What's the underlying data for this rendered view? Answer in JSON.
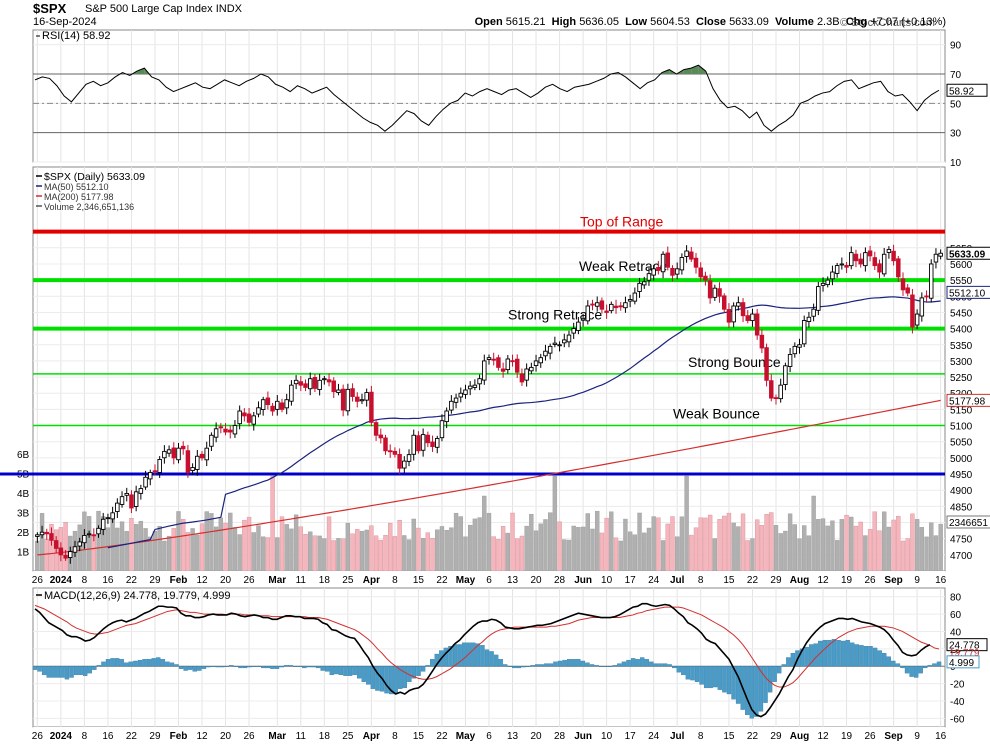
{
  "header": {
    "symbol": "$SPX",
    "name": "S&P 500 Large Cap Index",
    "exchange": "INDX",
    "date": "16-Sep-2024",
    "watermark": "© StockCharts.com",
    "open_label": "Open",
    "open": "5615.21",
    "high_label": "High",
    "high": "5636.05",
    "low_label": "Low",
    "low": "5604.53",
    "close_label": "Close",
    "close": "5633.09",
    "volume_label": "Volume",
    "volume": "2.3B",
    "chg_label": "Chg",
    "chg": "+7.07 (+0.13%)"
  },
  "colors": {
    "up": "#000000",
    "down": "#c8102e",
    "ma50": "#1a237e",
    "ma200": "#d32f2f",
    "green_line": "#00e000",
    "red_line": "#e00000",
    "blue_line": "#0000c8",
    "vol_up": "#b0b0b0",
    "vol_down": "#f4b6bc",
    "rsi_fill": "#5b8a5a",
    "macd_hist": "#4a9cc8",
    "macd_line": "#000000",
    "macd_signal": "#d32f2f"
  },
  "chart_data": [
    {
      "type": "line",
      "panel": "rsi",
      "legend": "RSI(14) 58.92",
      "ylim": [
        10,
        100
      ],
      "ticks": [
        10,
        30,
        50,
        70,
        90
      ],
      "last_value": "58.92",
      "overbought": 70,
      "oversold": 30,
      "midline": 50,
      "values": [
        66,
        68,
        67,
        62,
        55,
        51,
        57,
        63,
        65,
        62,
        64,
        68,
        71,
        69,
        72,
        74,
        68,
        66,
        61,
        58,
        60,
        62,
        64,
        61,
        60,
        63,
        66,
        64,
        62,
        65,
        67,
        70,
        68,
        63,
        61,
        58,
        62,
        60,
        57,
        59,
        61,
        56,
        52,
        48,
        44,
        40,
        37,
        35,
        31,
        35,
        40,
        45,
        43,
        38,
        35,
        41,
        46,
        50,
        52,
        57,
        55,
        58,
        60,
        58,
        56,
        59,
        60,
        57,
        54,
        57,
        61,
        63,
        60,
        58,
        61,
        62,
        63,
        65,
        67,
        70,
        71,
        68,
        64,
        60,
        64,
        66,
        71,
        73,
        70,
        73,
        74,
        76,
        72,
        60,
        52,
        47,
        48,
        45,
        40,
        44,
        35,
        31,
        35,
        38,
        42,
        50,
        52,
        55,
        57,
        58,
        62,
        65,
        66,
        60,
        62,
        64,
        65,
        58,
        55,
        56,
        51,
        45,
        52,
        56,
        58.92
      ]
    },
    {
      "type": "candlestick",
      "panel": "price",
      "legend": [
        "$SPX (Daily) 5633.09",
        "MA(50) 5512.10",
        "MA(200) 5177.98",
        "Volume 2,346,651,136"
      ],
      "ylim": [
        4650,
        5900
      ],
      "ticks": [
        4700,
        4750,
        4800,
        4850,
        4900,
        4950,
        5000,
        5050,
        5100,
        5150,
        5200,
        5250,
        5300,
        5350,
        5400,
        5450,
        5500,
        5550,
        5600,
        5650
      ],
      "last_close_label": "5633.09",
      "ma50_label": "5512.10",
      "ma200_label": "5177.98",
      "volume_label": "2346651",
      "volume_ticks": [
        "1B",
        "2B",
        "3B",
        "4B",
        "5B",
        "6B"
      ],
      "horizontal_lines": [
        {
          "value": 5700,
          "label": "Top of Range",
          "color": "#e00000"
        },
        {
          "value": 5550,
          "label": "Weak Retrace",
          "color": "#00e000"
        },
        {
          "value": 5400,
          "label": "Strong Retrace",
          "color": "#00e000"
        },
        {
          "value": 5260,
          "label": "Strong Bounce",
          "color": "#00e000"
        },
        {
          "value": 5100,
          "label": "Weak Bounce",
          "color": "#00e000"
        },
        {
          "value": 4950,
          "label": "",
          "color": "#0000c8"
        }
      ],
      "close": [
        4762,
        4770,
        4765,
        4745,
        4720,
        4700,
        4690,
        4710,
        4725,
        4740,
        4760,
        4765,
        4762,
        4782,
        4810,
        4815,
        4830,
        4860,
        4880,
        4890,
        4845,
        4895,
        4905,
        4940,
        4955,
        4960,
        4995,
        5020,
        5025,
        5000,
        5030,
        5028,
        4955,
        4970,
        5005,
        5000,
        5030,
        5070,
        5090,
        5095,
        5080,
        5080,
        5100,
        5145,
        5130,
        5110,
        5130,
        5155,
        5180,
        5165,
        5145,
        5175,
        5150,
        5180,
        5225,
        5240,
        5225,
        5218,
        5245,
        5215,
        5240,
        5245,
        5235,
        5205,
        5210,
        5148,
        5212,
        5190,
        5175,
        5180,
        5202,
        5110,
        5070,
        5062,
        5022,
        5020,
        5011,
        4968,
        4990,
        5010,
        5070,
        5022,
        5072,
        5047,
        5035,
        5060,
        5115,
        5145,
        5175,
        5185,
        5200,
        5210,
        5222,
        5225,
        5245,
        5300,
        5310,
        5305,
        5280,
        5268,
        5306,
        5300,
        5265,
        5235,
        5275,
        5280,
        5300,
        5310,
        5330,
        5345,
        5355,
        5350,
        5365,
        5380,
        5400,
        5420,
        5430,
        5470,
        5475,
        5480,
        5460,
        5450,
        5475,
        5465,
        5470,
        5480,
        5490,
        5510,
        5540,
        5545,
        5570,
        5585,
        5580,
        5630,
        5590,
        5565,
        5585,
        5620,
        5640,
        5615,
        5590,
        5560,
        5550,
        5495,
        5525,
        5500,
        5460,
        5420,
        5470,
        5480,
        5440,
        5425,
        5445,
        5380,
        5340,
        5240,
        5185,
        5185,
        5225,
        5285,
        5320,
        5345,
        5350,
        5425,
        5435,
        5460,
        5530,
        5540,
        5550,
        5575,
        5595,
        5600,
        5590,
        5635,
        5610,
        5600,
        5635,
        5625,
        5595,
        5575,
        5630,
        5645,
        5610,
        5560,
        5520,
        5510,
        5405,
        5445,
        5495,
        5500,
        5600,
        5630,
        5633.09
      ]
    },
    {
      "type": "bar",
      "panel": "macd",
      "legend": "MACD(12,26,9) 24.778, 19.779, 4.999",
      "ylim": [
        -70,
        90
      ],
      "ticks": [
        -60,
        -40,
        -20,
        0,
        20,
        40,
        60,
        80
      ],
      "macd_label": "24.778",
      "signal_label": "19.779",
      "hist_label": "4.999",
      "macd": [
        66,
        62,
        56,
        50,
        47,
        44,
        41,
        36,
        34,
        34,
        32,
        29,
        30,
        33,
        38,
        43,
        47,
        50,
        52,
        53,
        51,
        53,
        55,
        58,
        61,
        63,
        66,
        69,
        69,
        68,
        68,
        67,
        61,
        58,
        58,
        56,
        56,
        57,
        59,
        60,
        59,
        59,
        59,
        61,
        60,
        58,
        57,
        58,
        59,
        58,
        56,
        56,
        54,
        54,
        56,
        58,
        58,
        57,
        57,
        55,
        55,
        55,
        54,
        50,
        48,
        42,
        41,
        38,
        35,
        33,
        32,
        25,
        17,
        10,
        0,
        -8,
        -14,
        -22,
        -28,
        -32,
        -30,
        -32,
        -28,
        -26,
        -25,
        -21,
        -14,
        -6,
        2,
        9,
        15,
        20,
        26,
        30,
        36,
        41,
        46,
        50,
        52,
        52,
        54,
        53,
        50,
        45,
        44,
        43,
        43,
        44,
        45,
        46,
        47,
        47,
        48,
        49,
        51,
        53,
        55,
        57,
        59,
        61,
        60,
        59,
        58,
        57,
        56,
        56,
        56,
        57,
        59,
        62,
        65,
        68,
        69,
        72,
        72,
        70,
        69,
        70,
        71,
        70,
        66,
        61,
        57,
        50,
        47,
        43,
        38,
        31,
        28,
        26,
        20,
        14,
        8,
        -2,
        -12,
        -25,
        -38,
        -50,
        -56,
        -58,
        -55,
        -48,
        -40,
        -32,
        -22,
        -12,
        -4,
        8,
        18,
        27,
        34,
        40,
        45,
        49,
        51,
        53,
        55,
        55,
        54,
        55,
        53,
        51,
        50,
        49,
        47,
        45,
        42,
        37,
        30,
        24,
        16,
        13,
        12,
        13,
        18,
        22,
        24.778
      ],
      "signal": [
        70,
        68,
        66,
        63,
        60,
        57,
        54,
        51,
        47,
        44,
        42,
        40,
        38,
        37,
        37,
        38,
        39,
        41,
        43,
        45,
        47,
        48,
        49,
        51,
        53,
        55,
        57,
        59,
        61,
        63,
        64,
        65,
        64,
        63,
        62,
        62,
        61,
        60,
        60,
        60,
        60,
        60,
        59,
        60,
        60,
        60,
        59,
        59,
        59,
        58,
        58,
        58,
        57,
        57,
        57,
        57,
        57,
        57,
        57,
        57,
        56,
        56,
        56,
        55,
        54,
        52,
        50,
        48,
        46,
        44,
        42,
        39,
        35,
        31,
        26,
        20,
        15,
        9,
        4,
        0,
        -4,
        -7,
        -10,
        -12,
        -14,
        -15,
        -15,
        -14,
        -12,
        -9,
        -6,
        -3,
        1,
        5,
        9,
        14,
        19,
        24,
        28,
        33,
        37,
        40,
        42,
        43,
        44,
        45,
        45,
        45,
        45,
        45,
        45,
        45,
        45,
        46,
        46,
        47,
        48,
        49,
        51,
        53,
        54,
        55,
        56,
        56,
        56,
        56,
        56,
        56,
        56,
        57,
        58,
        59,
        61,
        62,
        64,
        65,
        66,
        67,
        68,
        68,
        68,
        68,
        67,
        65,
        63,
        61,
        59,
        56,
        53,
        50,
        47,
        44,
        40,
        36,
        31,
        25,
        18,
        10,
        2,
        -6,
        -13,
        -18,
        -22,
        -24,
        -24,
        -22,
        -19,
        -14,
        -8,
        -2,
        4,
        10,
        15,
        20,
        25,
        29,
        33,
        36,
        39,
        41,
        43,
        44,
        45,
        46,
        46,
        46,
        46,
        45,
        44,
        42,
        40,
        37,
        34,
        31,
        28,
        26,
        24,
        21,
        19.779
      ],
      "histogram": [
        -4,
        -6,
        -10,
        -13,
        -13,
        -13,
        -13,
        -15,
        -13,
        -10,
        -10,
        -11,
        -8,
        -4,
        1,
        5,
        8,
        9,
        9,
        8,
        4,
        5,
        6,
        7,
        8,
        8,
        9,
        10,
        8,
        5,
        4,
        2,
        -3,
        -5,
        -4,
        -6,
        -5,
        -3,
        -1,
        0,
        -1,
        -1,
        0,
        1,
        0,
        -2,
        -2,
        -1,
        0,
        0,
        -2,
        -2,
        -3,
        -3,
        -1,
        1,
        1,
        0,
        0,
        -2,
        -1,
        -1,
        -2,
        -5,
        -6,
        -10,
        -9,
        -10,
        -11,
        -11,
        -10,
        -14,
        -18,
        -21,
        -26,
        -28,
        -29,
        -31,
        -32,
        -32,
        -26,
        -25,
        -18,
        -14,
        -11,
        -6,
        1,
        8,
        14,
        18,
        21,
        23,
        25,
        25,
        27,
        27,
        27,
        26,
        24,
        19,
        17,
        13,
        8,
        2,
        0,
        -2,
        -2,
        -1,
        0,
        1,
        2,
        2,
        3,
        3,
        5,
        6,
        7,
        8,
        8,
        8,
        6,
        4,
        2,
        1,
        0,
        0,
        0,
        1,
        3,
        5,
        7,
        9,
        8,
        10,
        8,
        5,
        3,
        3,
        3,
        2,
        -2,
        -7,
        -10,
        -15,
        -16,
        -18,
        -21,
        -25,
        -25,
        -24,
        -27,
        -30,
        -32,
        -38,
        -43,
        -50,
        -56,
        -60,
        -58,
        -52,
        -42,
        -30,
        -18,
        -8,
        2,
        10,
        15,
        18,
        20,
        22,
        25,
        26,
        29,
        30,
        30,
        31,
        30,
        29,
        30,
        27,
        25,
        24,
        23,
        23,
        21,
        18,
        15,
        11,
        6,
        3,
        -2,
        -8,
        -12,
        -13,
        -8,
        -2,
        1,
        3,
        4.999
      ]
    }
  ],
  "x_axis": {
    "labels": [
      "26",
      "2024",
      "8",
      "16",
      "22",
      "29",
      "Feb",
      "12",
      "20",
      "26",
      "Mar",
      "11",
      "18",
      "25",
      "Apr",
      "8",
      "15",
      "22",
      "May",
      "6",
      "13",
      "20",
      "28",
      "Jun",
      "10",
      "17",
      "24",
      "Jul",
      "8",
      "15",
      "22",
      "29",
      "Aug",
      "12",
      "19",
      "26",
      "Sep",
      "9",
      "16"
    ]
  }
}
